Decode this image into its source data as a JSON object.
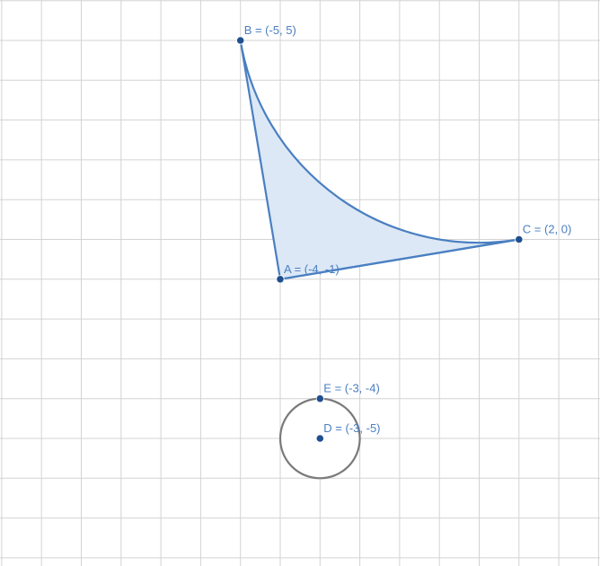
{
  "colors": {
    "grid": "#d3d3d3",
    "sector_stroke": "#4a7fc1",
    "sector_fill": "#dce8f6",
    "point": "#1f4f8f",
    "label": "#4a7fc1",
    "circle_stroke": "#7a7a7a"
  },
  "points": [
    {
      "id": "A",
      "x": -4,
      "y": -1,
      "label": "A = (-4, -1)"
    },
    {
      "id": "B",
      "x": -5,
      "y": 5,
      "label": "B = (-5, 5)"
    },
    {
      "id": "C",
      "x": 2,
      "y": 0,
      "label": "C = (2, 0)"
    },
    {
      "id": "D",
      "x": -3,
      "y": -5,
      "label": "D = (-3, -5)"
    },
    {
      "id": "E",
      "x": -3,
      "y": -4,
      "label": "E = (-3, -4)"
    }
  ],
  "shapes": {
    "sector": {
      "center": "A",
      "from": "B",
      "to": "C"
    },
    "circle": {
      "center": "D",
      "through": "E"
    }
  }
}
